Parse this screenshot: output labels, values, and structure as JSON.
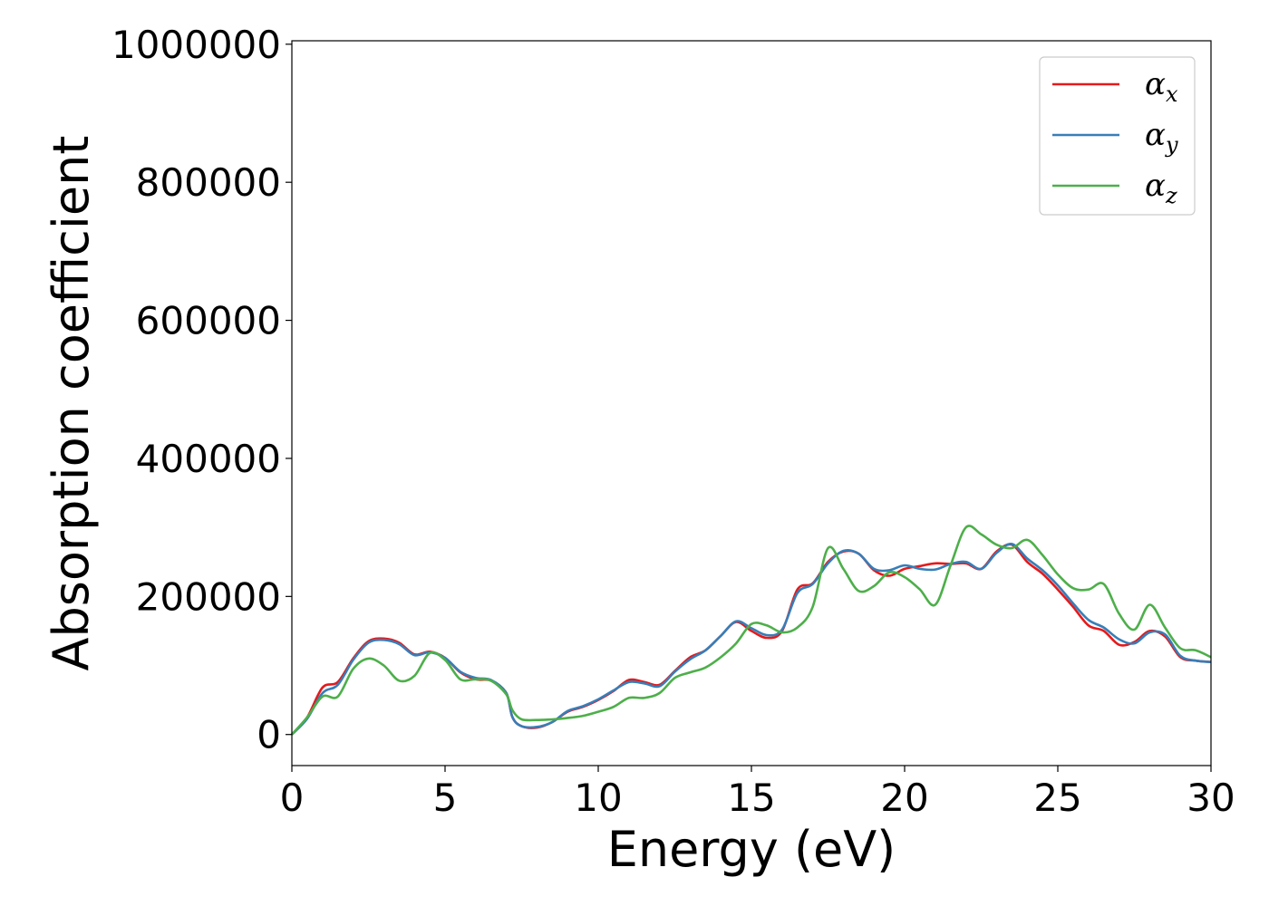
{
  "chart_data": {
    "type": "line",
    "xlabel": "Energy (eV)",
    "ylabel": "Absorption coefficient",
    "xlim": [
      0,
      30
    ],
    "ylim": [
      -45000,
      1005000
    ],
    "xticks": [
      0,
      5,
      10,
      15,
      20,
      25,
      30
    ],
    "yticks": [
      0,
      200000,
      400000,
      600000,
      800000,
      1000000
    ],
    "xtick_labels": [
      "0",
      "5",
      "10",
      "15",
      "20",
      "25",
      "30"
    ],
    "ytick_labels": [
      "0",
      "200000",
      "400000",
      "600000",
      "800000",
      "1000000"
    ],
    "grid": false,
    "legend_position": "top-right",
    "series": [
      {
        "name": "α",
        "subscript": "x",
        "color": "#e41a1c",
        "points": [
          [
            0,
            0
          ],
          [
            0.5,
            25000
          ],
          [
            1,
            68000
          ],
          [
            1.5,
            76000
          ],
          [
            2,
            110000
          ],
          [
            2.5,
            135000
          ],
          [
            3,
            139000
          ],
          [
            3.5,
            133000
          ],
          [
            4,
            116000
          ],
          [
            4.5,
            120000
          ],
          [
            5,
            111000
          ],
          [
            5.5,
            90000
          ],
          [
            6,
            80000
          ],
          [
            6.5,
            78000
          ],
          [
            7,
            60000
          ],
          [
            7.2,
            25000
          ],
          [
            7.5,
            12000
          ],
          [
            8,
            10000
          ],
          [
            8.5,
            18000
          ],
          [
            9,
            33000
          ],
          [
            9.5,
            40000
          ],
          [
            10,
            50000
          ],
          [
            10.5,
            63000
          ],
          [
            11,
            79000
          ],
          [
            11.5,
            76000
          ],
          [
            12,
            72000
          ],
          [
            12.5,
            92000
          ],
          [
            13,
            112000
          ],
          [
            13.5,
            122000
          ],
          [
            14,
            143000
          ],
          [
            14.5,
            163000
          ],
          [
            15,
            150000
          ],
          [
            15.5,
            140000
          ],
          [
            16,
            150000
          ],
          [
            16.5,
            210000
          ],
          [
            17,
            219000
          ],
          [
            17.5,
            250000
          ],
          [
            18,
            265000
          ],
          [
            18.5,
            262000
          ],
          [
            19,
            238000
          ],
          [
            19.5,
            230000
          ],
          [
            20,
            240000
          ],
          [
            20.5,
            244000
          ],
          [
            21,
            248000
          ],
          [
            21.5,
            247000
          ],
          [
            22,
            248000
          ],
          [
            22.5,
            240000
          ],
          [
            23,
            265000
          ],
          [
            23.5,
            275000
          ],
          [
            24,
            250000
          ],
          [
            24.5,
            233000
          ],
          [
            25,
            210000
          ],
          [
            25.5,
            185000
          ],
          [
            26,
            158000
          ],
          [
            26.5,
            150000
          ],
          [
            27,
            130000
          ],
          [
            27.5,
            134000
          ],
          [
            28,
            150000
          ],
          [
            28.5,
            142000
          ],
          [
            29,
            112000
          ],
          [
            29.5,
            107000
          ],
          [
            30,
            105000
          ]
        ]
      },
      {
        "name": "α",
        "subscript": "y",
        "color": "#377eb8",
        "points": [
          [
            0,
            0
          ],
          [
            0.5,
            23000
          ],
          [
            1,
            60000
          ],
          [
            1.5,
            72000
          ],
          [
            2,
            108000
          ],
          [
            2.5,
            133000
          ],
          [
            3,
            137000
          ],
          [
            3.5,
            131000
          ],
          [
            4,
            115000
          ],
          [
            4.5,
            119000
          ],
          [
            5,
            111000
          ],
          [
            5.5,
            91000
          ],
          [
            6,
            82000
          ],
          [
            6.5,
            79000
          ],
          [
            7,
            60000
          ],
          [
            7.2,
            25000
          ],
          [
            7.5,
            12000
          ],
          [
            8,
            11000
          ],
          [
            8.5,
            18000
          ],
          [
            9,
            34000
          ],
          [
            9.5,
            41000
          ],
          [
            10,
            51000
          ],
          [
            10.5,
            64000
          ],
          [
            11,
            76000
          ],
          [
            11.5,
            74000
          ],
          [
            12,
            70000
          ],
          [
            12.5,
            91000
          ],
          [
            13,
            109000
          ],
          [
            13.5,
            122000
          ],
          [
            14,
            143000
          ],
          [
            14.5,
            164000
          ],
          [
            15,
            154000
          ],
          [
            15.5,
            144000
          ],
          [
            16,
            152000
          ],
          [
            16.5,
            205000
          ],
          [
            17,
            218000
          ],
          [
            17.5,
            248000
          ],
          [
            18,
            266000
          ],
          [
            18.5,
            262000
          ],
          [
            19,
            240000
          ],
          [
            19.5,
            238000
          ],
          [
            20,
            245000
          ],
          [
            20.5,
            240000
          ],
          [
            21,
            239000
          ],
          [
            21.5,
            247000
          ],
          [
            22,
            250000
          ],
          [
            22.5,
            240000
          ],
          [
            23,
            263000
          ],
          [
            23.5,
            276000
          ],
          [
            24,
            255000
          ],
          [
            24.5,
            238000
          ],
          [
            25,
            216000
          ],
          [
            25.5,
            190000
          ],
          [
            26,
            166000
          ],
          [
            26.5,
            155000
          ],
          [
            27,
            138000
          ],
          [
            27.5,
            132000
          ],
          [
            28,
            148000
          ],
          [
            28.5,
            145000
          ],
          [
            29,
            114000
          ],
          [
            29.5,
            107000
          ],
          [
            30,
            105000
          ]
        ]
      },
      {
        "name": "α",
        "subscript": "z",
        "color": "#4daf4a",
        "points": [
          [
            0,
            0
          ],
          [
            0.5,
            25000
          ],
          [
            1,
            55000
          ],
          [
            1.5,
            55000
          ],
          [
            2,
            95000
          ],
          [
            2.5,
            110000
          ],
          [
            3,
            100000
          ],
          [
            3.5,
            78000
          ],
          [
            4,
            85000
          ],
          [
            4.5,
            118000
          ],
          [
            5,
            108000
          ],
          [
            5.5,
            80000
          ],
          [
            6,
            80000
          ],
          [
            6.5,
            78000
          ],
          [
            7,
            58000
          ],
          [
            7.2,
            35000
          ],
          [
            7.5,
            22000
          ],
          [
            8,
            21000
          ],
          [
            8.5,
            22000
          ],
          [
            9,
            24000
          ],
          [
            9.5,
            27000
          ],
          [
            10,
            33000
          ],
          [
            10.5,
            40000
          ],
          [
            11,
            53000
          ],
          [
            11.5,
            53000
          ],
          [
            12,
            60000
          ],
          [
            12.5,
            82000
          ],
          [
            13,
            90000
          ],
          [
            13.5,
            97000
          ],
          [
            14,
            112000
          ],
          [
            14.5,
            132000
          ],
          [
            15,
            160000
          ],
          [
            15.5,
            158000
          ],
          [
            16,
            148000
          ],
          [
            16.5,
            155000
          ],
          [
            17,
            185000
          ],
          [
            17.5,
            270000
          ],
          [
            18,
            240000
          ],
          [
            18.5,
            208000
          ],
          [
            19,
            215000
          ],
          [
            19.5,
            235000
          ],
          [
            20,
            228000
          ],
          [
            20.5,
            210000
          ],
          [
            21,
            188000
          ],
          [
            21.5,
            245000
          ],
          [
            22,
            300000
          ],
          [
            22.5,
            290000
          ],
          [
            23,
            275000
          ],
          [
            23.5,
            270000
          ],
          [
            24,
            282000
          ],
          [
            24.5,
            260000
          ],
          [
            25,
            232000
          ],
          [
            25.5,
            212000
          ],
          [
            26,
            210000
          ],
          [
            26.5,
            218000
          ],
          [
            27,
            175000
          ],
          [
            27.5,
            152000
          ],
          [
            28,
            188000
          ],
          [
            28.5,
            155000
          ],
          [
            29,
            125000
          ],
          [
            29.5,
            122000
          ],
          [
            30,
            112000
          ]
        ]
      }
    ]
  }
}
